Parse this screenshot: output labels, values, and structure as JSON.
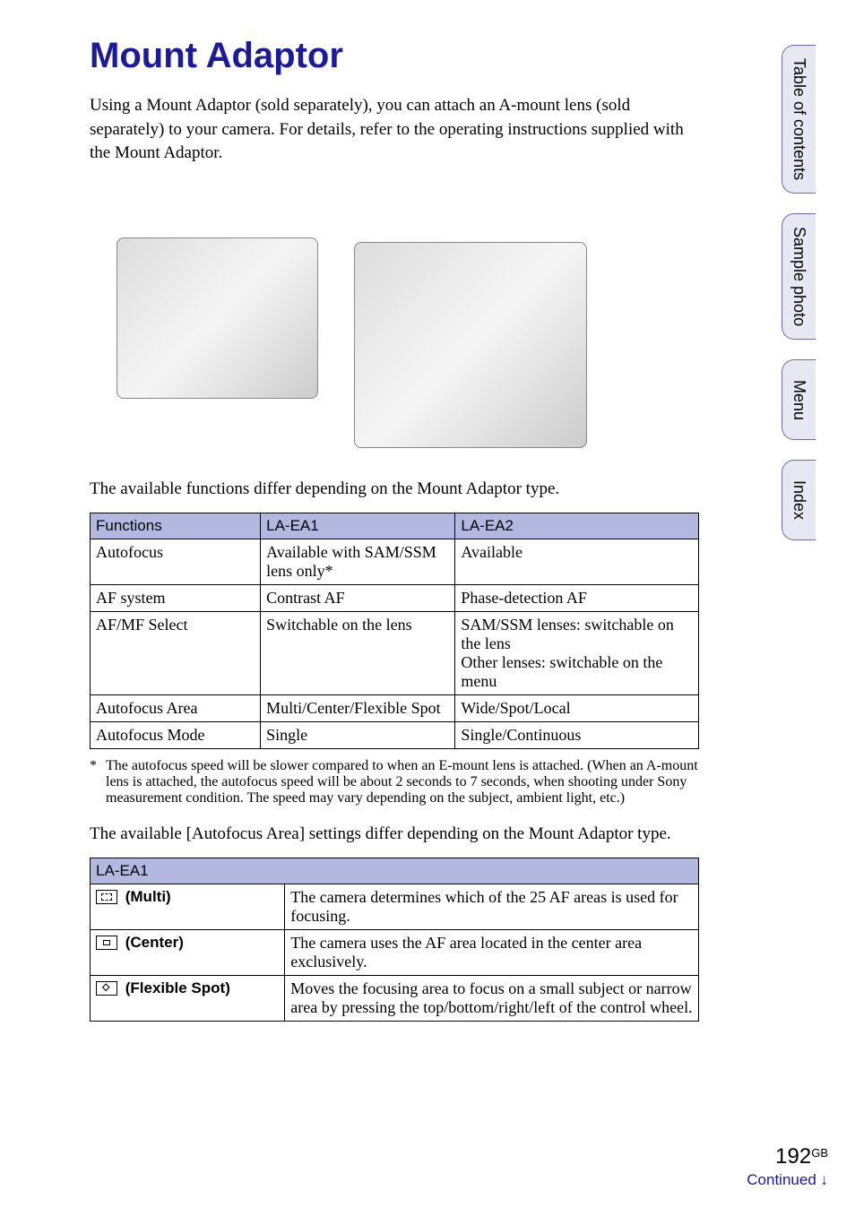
{
  "title": "Mount Adaptor",
  "intro": "Using a Mount Adaptor (sold separately), you can attach an A-mount lens (sold separately) to your camera. For details, refer to the operating instructions supplied with the Mount Adaptor.",
  "body1": "The available functions differ depending on the Mount Adaptor type.",
  "table1": {
    "headers": [
      "Functions",
      "LA-EA1",
      "LA-EA2"
    ],
    "rows": [
      [
        "Autofocus",
        "Available with SAM/SSM lens only*",
        "Available"
      ],
      [
        "AF system",
        "Contrast AF",
        "Phase-detection AF"
      ],
      [
        "AF/MF Select",
        "Switchable on the lens",
        "SAM/SSM lenses: switchable on the lens\nOther lenses: switchable on the menu"
      ],
      [
        "Autofocus Area",
        "Multi/Center/Flexible Spot",
        "Wide/Spot/Local"
      ],
      [
        "Autofocus Mode",
        "Single",
        "Single/Continuous"
      ]
    ]
  },
  "footnote_marker": "*",
  "footnote": "The autofocus speed will be slower compared to when an E-mount lens is attached. (When an A-mount lens is attached, the autofocus speed will be about 2 seconds to 7 seconds, when shooting under Sony measurement condition. The speed may vary depending on the subject, ambient light, etc.)",
  "body2": "The available [Autofocus Area] settings differ depending on the Mount Adaptor type.",
  "table2": {
    "header": "LA-EA1",
    "rows": [
      {
        "label": "(Multi)",
        "desc": "The camera determines which of the 25 AF areas is used for focusing."
      },
      {
        "label": "(Center)",
        "desc": "The camera uses the AF area located in the center area exclusively."
      },
      {
        "label": "(Flexible Spot)",
        "desc": "Moves the focusing area to focus on a small subject or narrow area by pressing the top/bottom/right/left of the control wheel."
      }
    ]
  },
  "sidebar": {
    "tabs": [
      "Table of contents",
      "Sample photo",
      "Menu",
      "Index"
    ]
  },
  "page_number": "192",
  "page_suffix": "GB",
  "continued": "Continued ↓",
  "colors": {
    "heading": "#1a1a9e",
    "table_header_bg": "#b3b8e0",
    "tab_bg": "#e8e8f2",
    "tab_border": "#6a6ab0",
    "continued_color": "#1a1a9e"
  }
}
